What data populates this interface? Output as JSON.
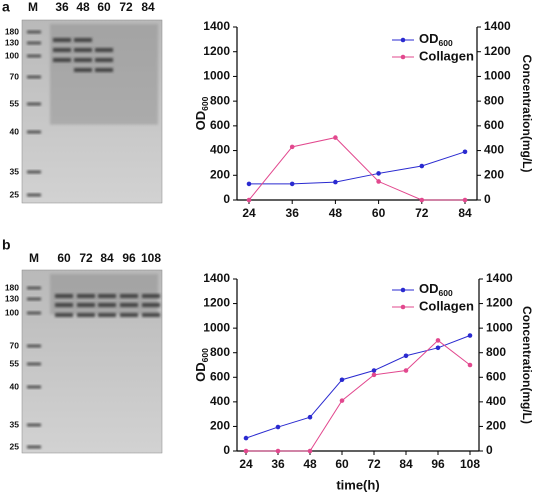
{
  "panels": [
    {
      "label": "a",
      "gel": {
        "lanes": [
          "M",
          "36",
          "48",
          "60",
          "72",
          "84"
        ],
        "markers": [
          180,
          130,
          100,
          70,
          55,
          40,
          35,
          25
        ]
      }
    },
    {
      "label": "b",
      "gel": {
        "lanes": [
          "M",
          "60",
          "72",
          "84",
          "96",
          "108"
        ],
        "markers": [
          180,
          130,
          100,
          70,
          55,
          40,
          35,
          25
        ]
      }
    }
  ],
  "chart_data": [
    {
      "type": "line",
      "y_label": "OD600",
      "y2_label": "Concentration(mg/L)",
      "categories": [
        24,
        36,
        48,
        60,
        72,
        84
      ],
      "series": [
        {
          "name": "OD600",
          "color": "#2a2ad0",
          "values": [
            130,
            130,
            145,
            215,
            275,
            390
          ]
        },
        {
          "name": "Collagen",
          "color": "#e2488e",
          "axis": "y2",
          "values": [
            0,
            430,
            505,
            150,
            0,
            0
          ]
        }
      ],
      "ylim": [
        0,
        1400
      ],
      "yticks": [
        0,
        200,
        400,
        600,
        800,
        1000,
        1200,
        1400
      ],
      "y2lim": [
        0,
        1400
      ],
      "y2ticks": [
        0,
        200,
        400,
        600,
        800,
        1000,
        1200,
        1400
      ]
    },
    {
      "type": "line",
      "x_label": "time(h)",
      "y_label": "OD600",
      "y2_label": "Concentration(mg/L)",
      "categories": [
        24,
        36,
        48,
        60,
        72,
        84,
        96,
        108
      ],
      "series": [
        {
          "name": "OD600",
          "color": "#2a2ad0",
          "values": [
            105,
            195,
            275,
            580,
            655,
            775,
            840,
            940
          ]
        },
        {
          "name": "Collagen",
          "color": "#e2488e",
          "axis": "y2",
          "values": [
            0,
            0,
            0,
            410,
            620,
            655,
            900,
            700
          ]
        }
      ],
      "ylim": [
        0,
        1400
      ],
      "yticks": [
        0,
        200,
        400,
        600,
        800,
        1000,
        1200,
        1400
      ],
      "y2lim": [
        0,
        1400
      ],
      "y2ticks": [
        0,
        200,
        400,
        600,
        800,
        1000,
        1200,
        1400
      ]
    }
  ]
}
